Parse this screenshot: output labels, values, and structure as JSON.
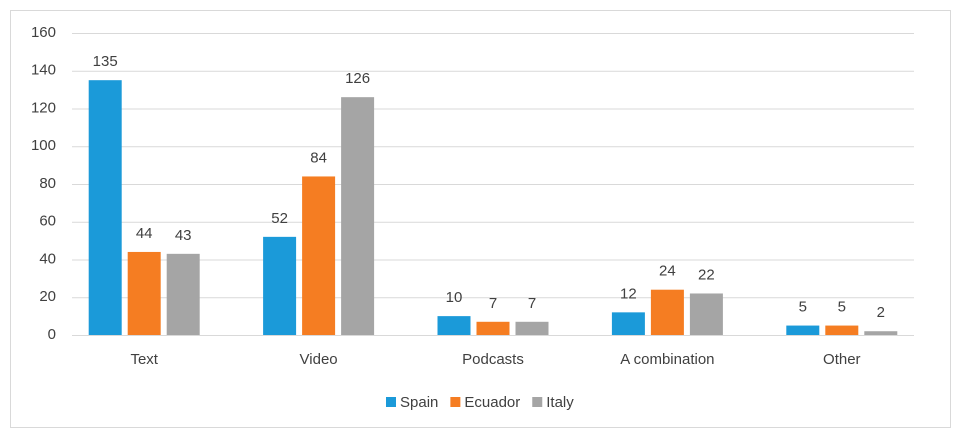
{
  "chart_data": {
    "type": "bar",
    "categories": [
      "Text",
      "Video",
      "Podcasts",
      "A combination",
      "Other"
    ],
    "series": [
      {
        "name": "Spain",
        "color": "#1b9ad9",
        "values": [
          135,
          52,
          10,
          12,
          5
        ]
      },
      {
        "name": "Ecuador",
        "color": "#f57d22",
        "values": [
          44,
          84,
          7,
          24,
          5
        ]
      },
      {
        "name": "Italy",
        "color": "#a5a5a5",
        "values": [
          43,
          126,
          7,
          22,
          2
        ]
      }
    ],
    "ylim": [
      0,
      160
    ],
    "yticks": [
      0,
      20,
      40,
      60,
      80,
      100,
      120,
      140,
      160
    ],
    "grid": true,
    "legend": "bottom"
  }
}
